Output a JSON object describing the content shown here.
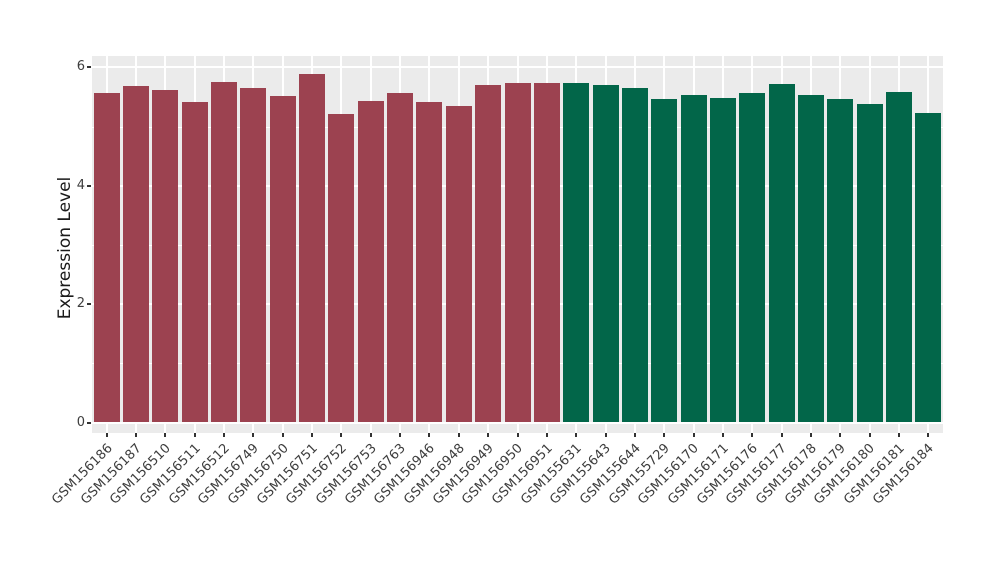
{
  "figure": {
    "background": "#FFFFFF",
    "panel_background": "#EBEBEB",
    "gridline_color": "#FFFFFF",
    "tick_mark_color": "#333333",
    "axis_text_color": "#3D3D3D",
    "axis_title_color": "#1A1A1A"
  },
  "chart_data": {
    "type": "bar",
    "title": "",
    "xlabel": "",
    "ylabel": "Expression Level",
    "ylim": [
      0,
      6
    ],
    "yticks": [
      "0",
      "2",
      "4",
      "6"
    ],
    "yticks_minor": [
      1,
      3,
      5
    ],
    "grid": "major-white-on-gray, minor-horizontal",
    "legend_position": "none",
    "x_tick_label_rotation_deg": 45,
    "categories": [
      "GSM156186",
      "GSM156187",
      "GSM156510",
      "GSM156511",
      "GSM156512",
      "GSM156749",
      "GSM156750",
      "GSM156751",
      "GSM156752",
      "GSM156753",
      "GSM156763",
      "GSM156946",
      "GSM156948",
      "GSM156949",
      "GSM156950",
      "GSM156951",
      "GSM155631",
      "GSM155643",
      "GSM155644",
      "GSM155729",
      "GSM156170",
      "GSM156171",
      "GSM156176",
      "GSM156177",
      "GSM156178",
      "GSM156179",
      "GSM156180",
      "GSM156181",
      "GSM156184"
    ],
    "values": [
      5.57,
      5.69,
      5.62,
      5.42,
      5.75,
      5.65,
      5.51,
      5.89,
      5.21,
      5.44,
      5.57,
      5.42,
      5.35,
      5.71,
      5.74,
      5.74,
      5.73,
      5.71,
      5.65,
      5.47,
      5.54,
      5.49,
      5.57,
      5.72,
      5.53,
      5.46,
      5.38,
      5.59,
      5.23
    ],
    "groups": [
      {
        "color": "#9C4250",
        "count": 16
      },
      {
        "color": "#026649",
        "count": 13
      }
    ]
  }
}
